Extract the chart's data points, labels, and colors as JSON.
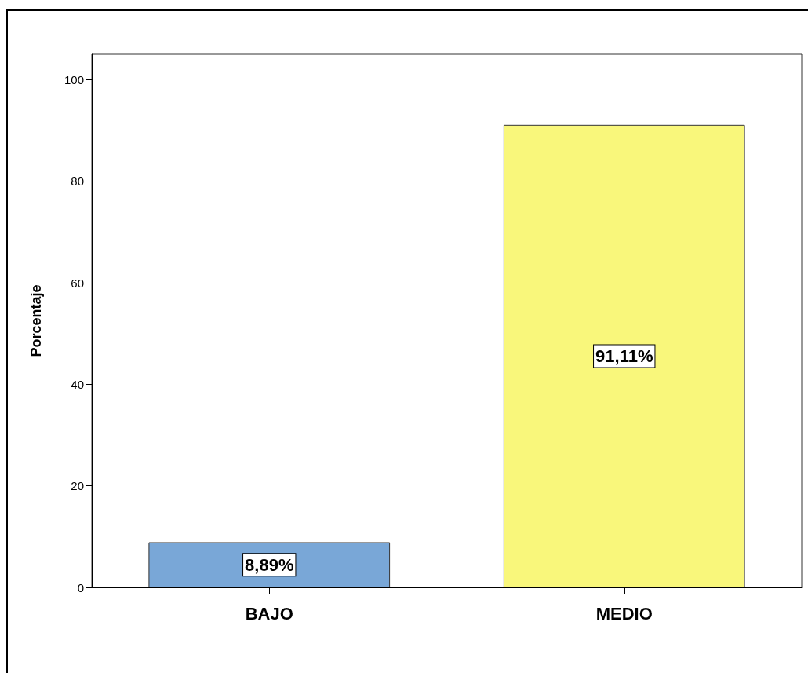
{
  "chart_data": {
    "type": "bar",
    "ylabel": "Porcentaje",
    "categories": [
      "BAJO",
      "MEDIO"
    ],
    "values": [
      8.89,
      91.11
    ],
    "colors": [
      "#79a7d7",
      "#f9f77b"
    ],
    "value_labels": [
      "8,89%",
      "91,11%"
    ],
    "ylim": [
      0,
      105
    ],
    "yticks": [
      0,
      20,
      40,
      60,
      80,
      100
    ],
    "grid": false
  }
}
